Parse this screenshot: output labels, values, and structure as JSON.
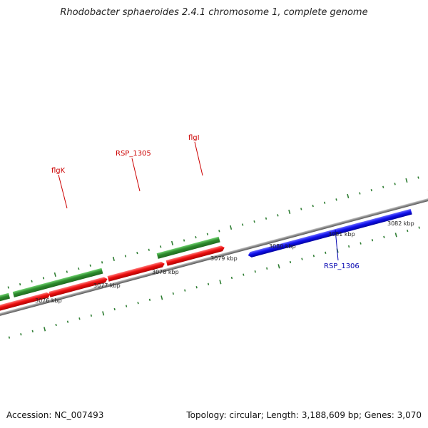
{
  "title": "Rhodobacter sphaeroides 2.4.1 chromosome 1, complete genome",
  "footer": {
    "accession": "Accession: NC_007493",
    "summary": "Topology: circular; Length: 3,188,609 bp; Genes: 3,070"
  },
  "colors": {
    "forward_gene": "#2e8b2e",
    "reverse_gene": "#e01010",
    "highlight_gene": "#1010e0",
    "backbone": "#8a8a8a",
    "tick_forward": "#2e7d32",
    "label_red": "#cc0000",
    "label_blue": "#0000b0"
  },
  "kbp_labels": [
    "3076 kbp",
    "3077 kbp",
    "3078 kbp",
    "3079 kbp",
    "3080 kbp",
    "3081 kbp",
    "3082 kbp"
  ],
  "gene_labels": [
    {
      "name": "flgK",
      "color": "red"
    },
    {
      "name": "RSP_1305",
      "color": "red"
    },
    {
      "name": "flgI",
      "color": "red"
    },
    {
      "name": "RSP_1306",
      "color": "blue"
    }
  ]
}
